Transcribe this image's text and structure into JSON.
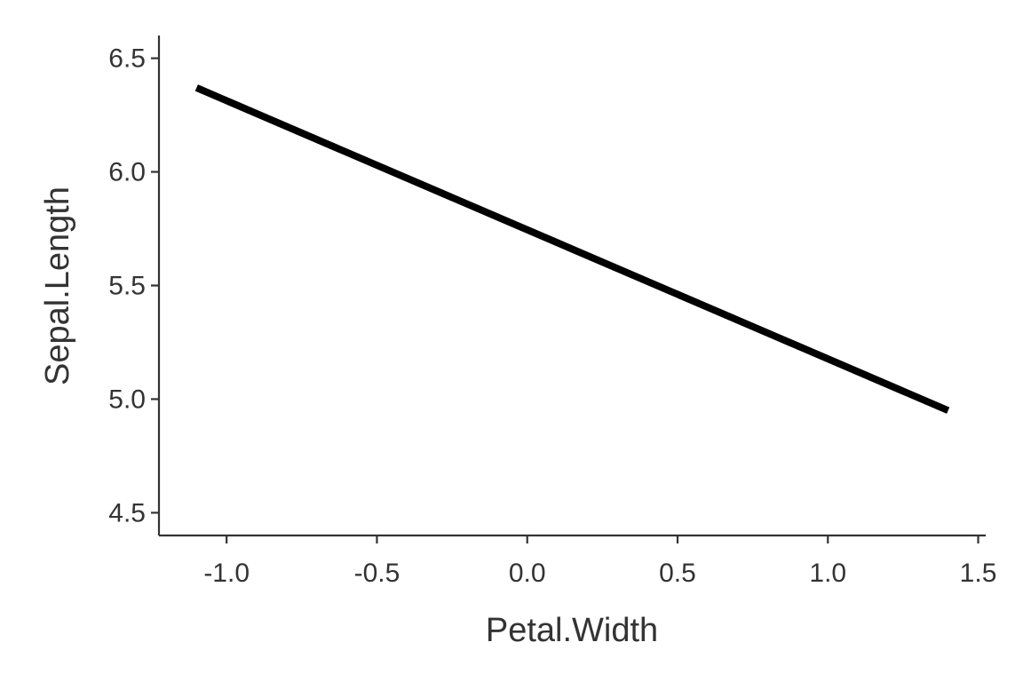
{
  "chart_data": {
    "type": "line",
    "title": "",
    "xlabel": "Petal.Width",
    "ylabel": "Sepal.Length",
    "xlim": [
      -1.225,
      1.525
    ],
    "ylim": [
      4.4,
      6.6
    ],
    "x_ticks": [
      -1.0,
      -0.5,
      0.0,
      0.5,
      1.0,
      1.5
    ],
    "x_tick_labels": [
      "-1.0",
      "-0.5",
      "0.0",
      "0.5",
      "1.0",
      "1.5"
    ],
    "y_ticks": [
      4.5,
      5.0,
      5.5,
      6.0,
      6.5
    ],
    "y_tick_labels": [
      "4.5",
      "5.0",
      "5.5",
      "6.0",
      "6.5"
    ],
    "grid": false,
    "series": [
      {
        "color": "#000000",
        "x": [
          -1.1,
          1.4
        ],
        "y": [
          6.37,
          4.95
        ]
      }
    ]
  }
}
